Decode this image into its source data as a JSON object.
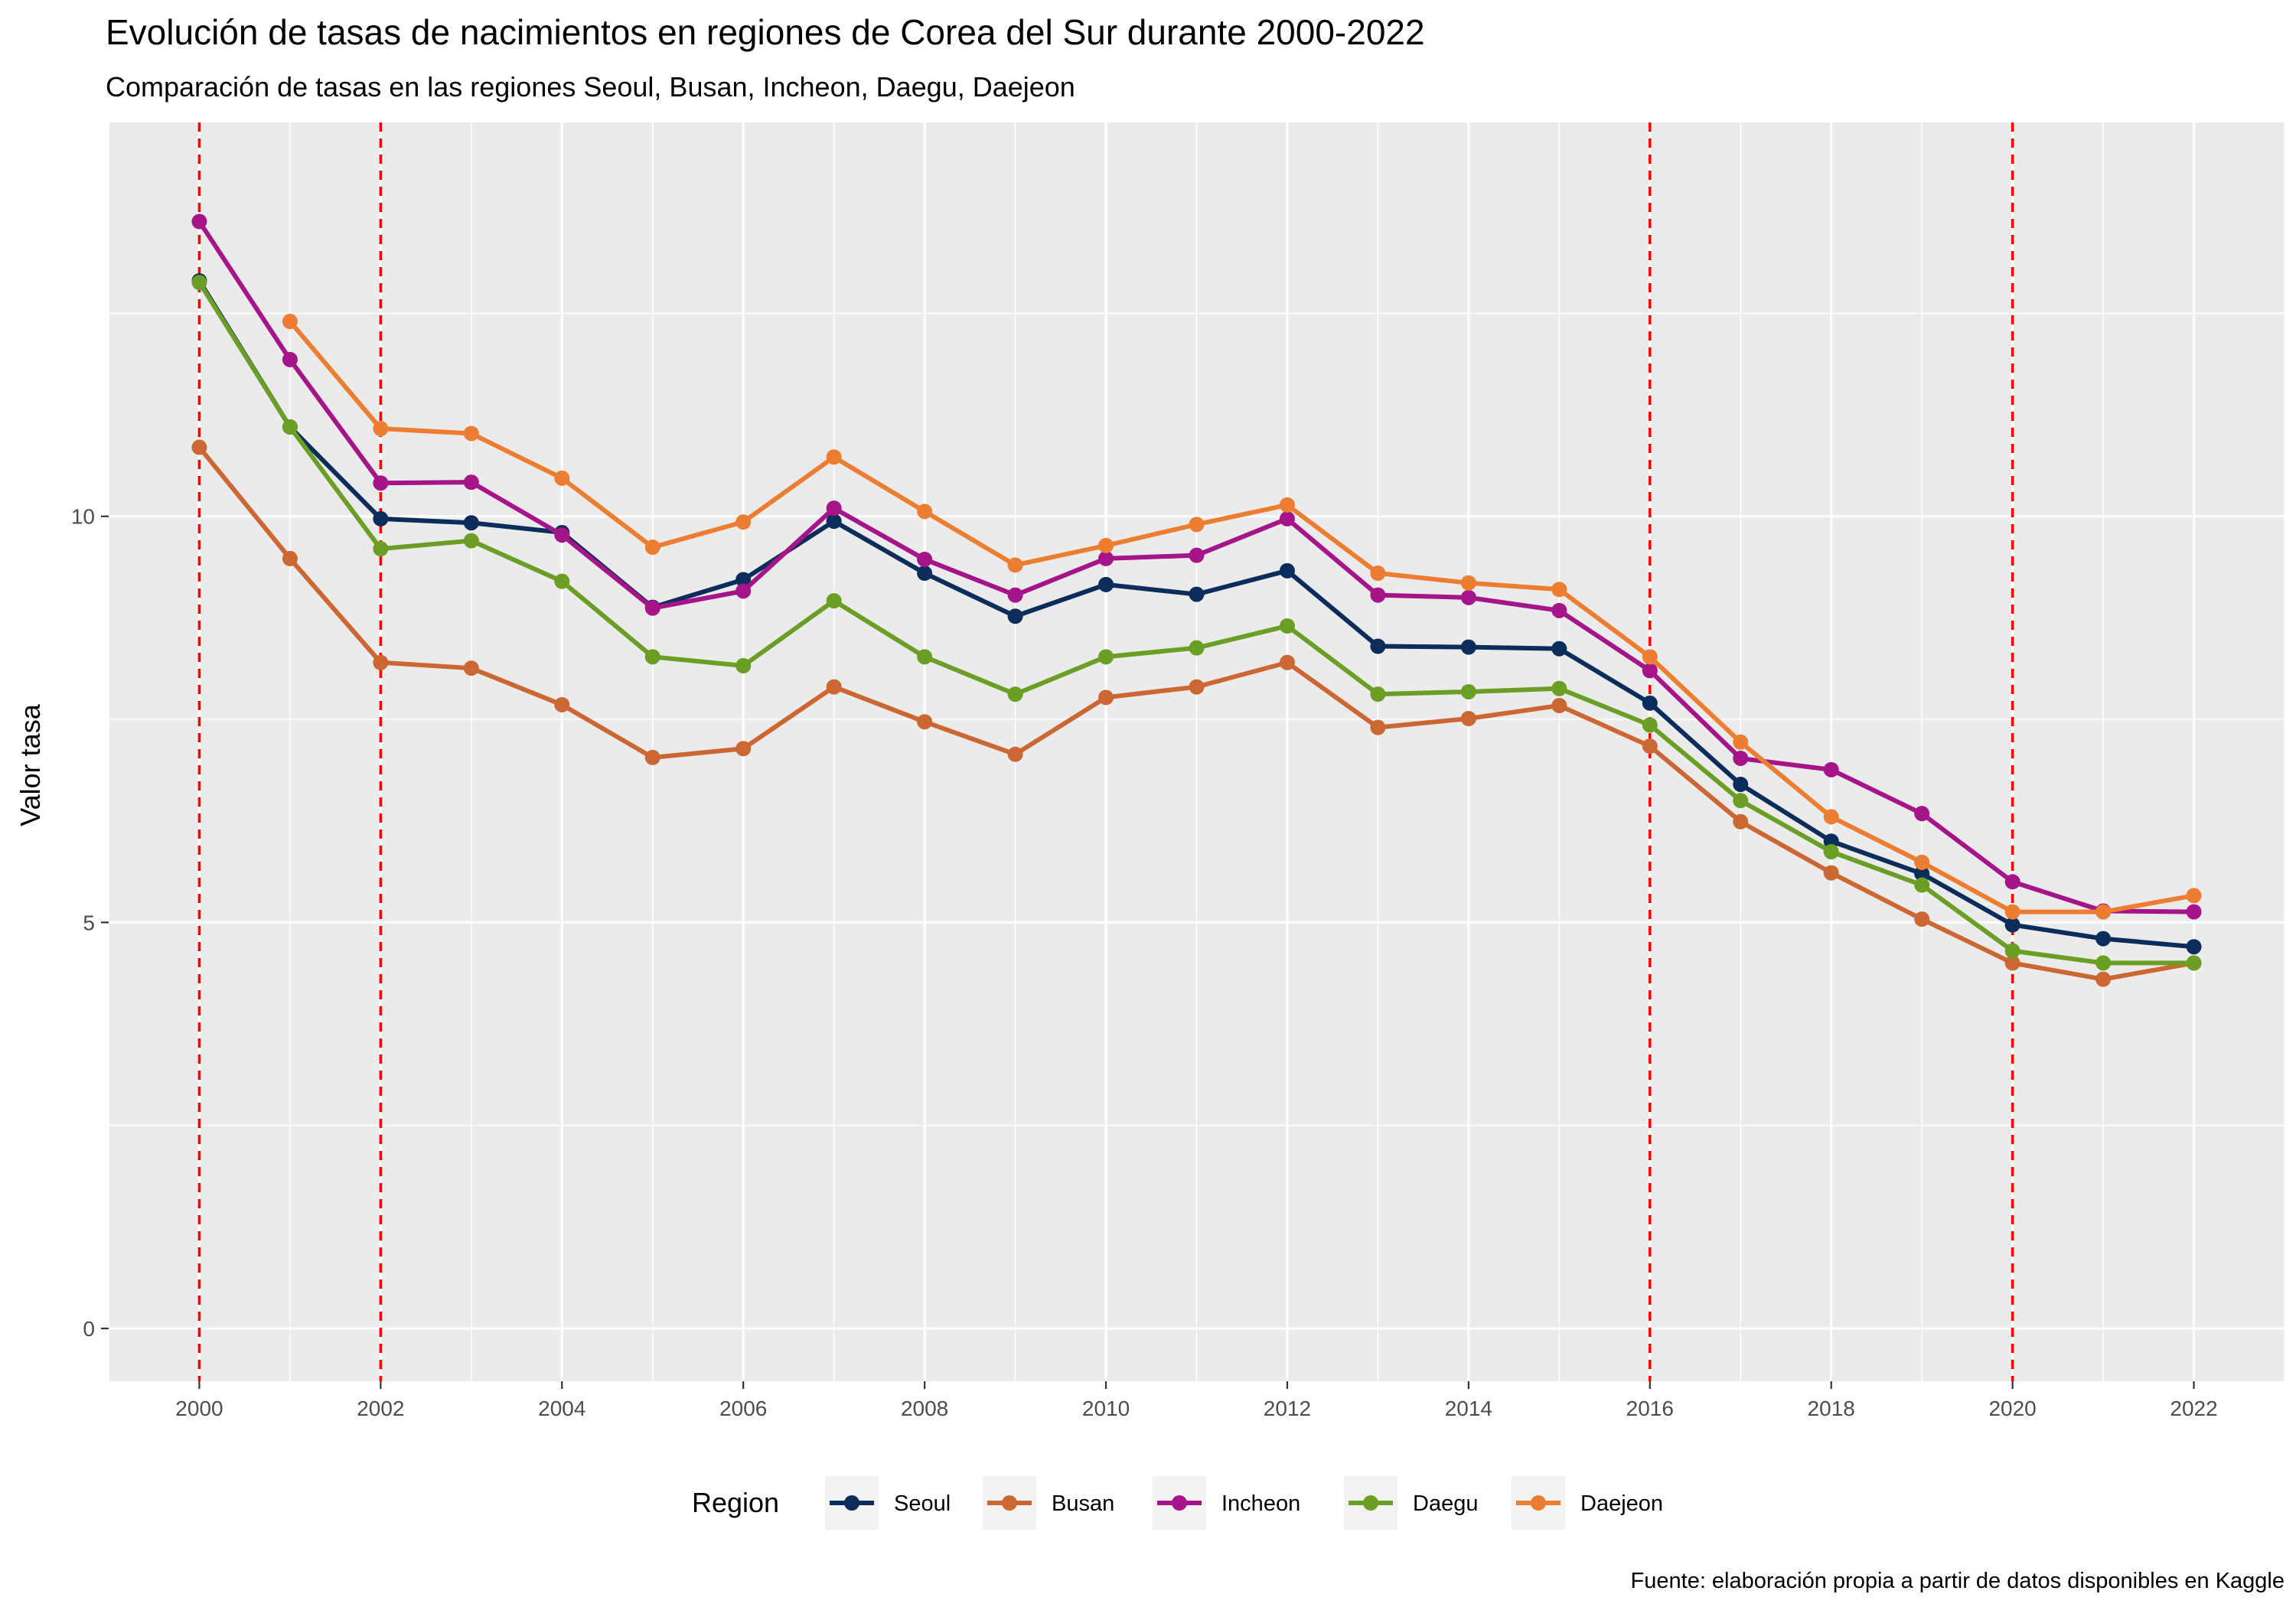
{
  "chart_data": {
    "type": "line",
    "title": "Evolución de tasas de nacimientos en regiones de Corea del Sur durante 2000-2022",
    "subtitle": "Comparación de  tasas en las regiones Seoul, Busan, Incheon, Daegu, Daejeon",
    "xlabel": "",
    "ylabel": "Valor tasa",
    "caption": "Fuente: elaboración propia a partir de datos disponibles en Kaggle",
    "xlim": [
      1999,
      2023
    ],
    "ylim": [
      -0.65,
      14.85
    ],
    "xticks": [
      "2000",
      "2002",
      "2004",
      "2006",
      "2008",
      "2010",
      "2012",
      "2014",
      "2016",
      "2018",
      "2020",
      "2022"
    ],
    "yticks": [
      "0",
      "5",
      "10"
    ],
    "vlines": [
      2000,
      2002,
      2016,
      2020
    ],
    "vline_color": "#FF0000",
    "grid": true,
    "legend_title": "Region",
    "legend_position": "bottom",
    "panel_background": "#EBEBEB",
    "x": [
      2000,
      2001,
      2002,
      2003,
      2004,
      2005,
      2006,
      2007,
      2008,
      2009,
      2010,
      2011,
      2012,
      2013,
      2014,
      2015,
      2016,
      2017,
      2018,
      2019,
      2020,
      2021,
      2022
    ],
    "series": [
      {
        "name": "Seoul",
        "color": "#0B2D5B",
        "values": [
          12.9,
          11.1,
          9.97,
          9.92,
          9.8,
          8.88,
          9.22,
          9.94,
          9.3,
          8.77,
          9.16,
          9.04,
          9.33,
          8.4,
          8.39,
          8.37,
          7.7,
          6.7,
          6.0,
          5.6,
          4.97,
          4.8,
          4.7
        ]
      },
      {
        "name": "Busan",
        "color": "#CC6633",
        "values": [
          10.85,
          9.48,
          8.2,
          8.13,
          7.68,
          7.03,
          7.14,
          7.9,
          7.47,
          7.07,
          7.77,
          7.9,
          8.2,
          7.4,
          7.51,
          7.67,
          7.17,
          6.24,
          5.61,
          5.04,
          4.5,
          4.3,
          4.5
        ]
      },
      {
        "name": "Incheon",
        "color": "#A51488",
        "values": [
          13.63,
          11.93,
          10.41,
          10.42,
          9.77,
          8.87,
          9.08,
          10.1,
          9.47,
          9.03,
          9.48,
          9.52,
          9.97,
          9.03,
          9.0,
          8.84,
          8.1,
          7.02,
          6.88,
          6.34,
          5.5,
          5.14,
          5.13
        ]
      },
      {
        "name": "Daegu",
        "color": "#6B9E25",
        "values": [
          12.88,
          11.1,
          9.6,
          9.7,
          9.2,
          8.27,
          8.16,
          8.96,
          8.27,
          7.81,
          8.27,
          8.38,
          8.65,
          7.81,
          7.84,
          7.88,
          7.43,
          6.5,
          5.87,
          5.46,
          4.65,
          4.5,
          4.5
        ]
      },
      {
        "name": "Daejeon",
        "color": "#ED7D31",
        "values": [
          null,
          12.4,
          11.08,
          11.02,
          10.47,
          9.62,
          9.93,
          10.73,
          10.06,
          9.4,
          9.64,
          9.9,
          10.14,
          9.3,
          9.18,
          9.1,
          8.27,
          7.22,
          6.3,
          5.74,
          5.13,
          5.13,
          5.33
        ]
      }
    ]
  }
}
